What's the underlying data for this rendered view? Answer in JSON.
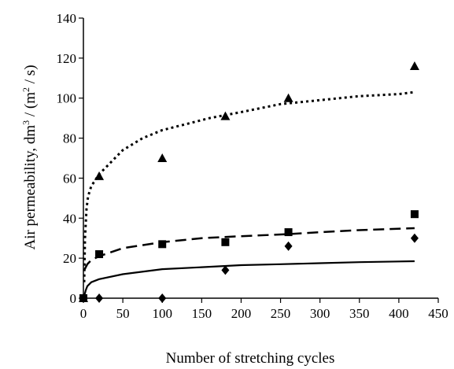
{
  "chart_data": {
    "type": "scatter",
    "xlabel": "Number of stretching cycles",
    "ylabel": {
      "prefix": "Air permeability, dm",
      "sup1": "3",
      "mid": " / (m",
      "sup2": "2",
      "suffix": " / s)"
    },
    "xlim": [
      0,
      450
    ],
    "ylim": [
      0,
      140
    ],
    "xticks": [
      0,
      50,
      100,
      150,
      200,
      250,
      300,
      350,
      400,
      450
    ],
    "yticks": [
      0,
      20,
      40,
      60,
      80,
      100,
      120,
      140
    ],
    "grid": false,
    "legend": "none",
    "series": [
      {
        "marker": "triangle",
        "points": [
          [
            0,
            0
          ],
          [
            20,
            61
          ],
          [
            100,
            70
          ],
          [
            180,
            91
          ],
          [
            260,
            100
          ],
          [
            420,
            116
          ]
        ],
        "trend": "dotted",
        "trend_points": [
          [
            1,
            8
          ],
          [
            2,
            30
          ],
          [
            4,
            45
          ],
          [
            6,
            51
          ],
          [
            10,
            56
          ],
          [
            20,
            62
          ],
          [
            30,
            66
          ],
          [
            50,
            74
          ],
          [
            75,
            80
          ],
          [
            100,
            84
          ],
          [
            130,
            87
          ],
          [
            160,
            90
          ],
          [
            200,
            93
          ],
          [
            250,
            97
          ],
          [
            300,
            99
          ],
          [
            350,
            101
          ],
          [
            400,
            102
          ],
          [
            420,
            103
          ]
        ]
      },
      {
        "marker": "square",
        "points": [
          [
            0,
            0
          ],
          [
            20,
            22
          ],
          [
            100,
            27
          ],
          [
            180,
            28
          ],
          [
            260,
            33
          ],
          [
            420,
            42
          ]
        ],
        "trend": "dashed",
        "trend_points": [
          [
            1,
            14
          ],
          [
            5,
            17
          ],
          [
            10,
            19
          ],
          [
            20,
            21
          ],
          [
            50,
            25
          ],
          [
            100,
            28
          ],
          [
            150,
            30
          ],
          [
            200,
            31
          ],
          [
            260,
            32
          ],
          [
            300,
            33
          ],
          [
            350,
            34
          ],
          [
            420,
            35
          ]
        ]
      },
      {
        "marker": "diamond",
        "points": [
          [
            0,
            0
          ],
          [
            20,
            0
          ],
          [
            100,
            0
          ],
          [
            180,
            14
          ],
          [
            260,
            26
          ],
          [
            420,
            30
          ]
        ],
        "trend": "solid",
        "trend_points": [
          [
            1,
            1
          ],
          [
            3,
            4
          ],
          [
            5,
            6
          ],
          [
            10,
            8
          ],
          [
            20,
            9.5
          ],
          [
            50,
            12
          ],
          [
            100,
            14.5
          ],
          [
            150,
            15.5
          ],
          [
            200,
            16.5
          ],
          [
            250,
            17
          ],
          [
            300,
            17.5
          ],
          [
            350,
            18
          ],
          [
            420,
            18.5
          ]
        ]
      }
    ]
  }
}
